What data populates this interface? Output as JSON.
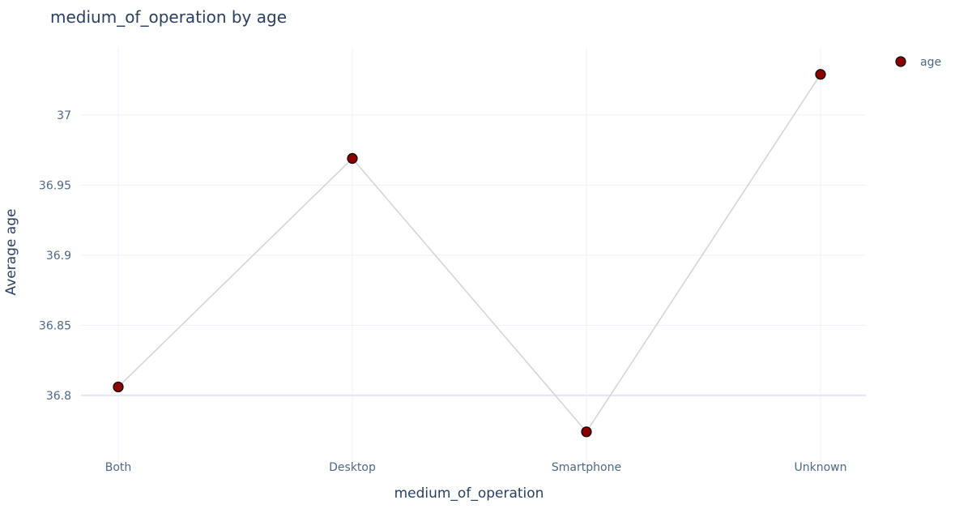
{
  "chart_data": {
    "type": "line",
    "title": "medium_of_operation by age",
    "xlabel": "medium_of_operation",
    "ylabel": "Average age",
    "categories": [
      "Both",
      "Desktop",
      "Smartphone",
      "Unknown"
    ],
    "series": [
      {
        "name": "age",
        "values": [
          36.806,
          36.969,
          36.774,
          37.029
        ]
      }
    ],
    "y_ticks": [
      "36.8",
      "36.85",
      "36.9",
      "36.95",
      "37"
    ],
    "ylim": [
      36.7525,
      37.0485
    ],
    "grid": true,
    "legend": "top-right",
    "colors": {
      "line": "#d3d3d3",
      "marker": "#8b0000",
      "marker_edge": "#000000",
      "grid": "#ebf0f8",
      "zeroline": "#e0e6f0"
    }
  }
}
